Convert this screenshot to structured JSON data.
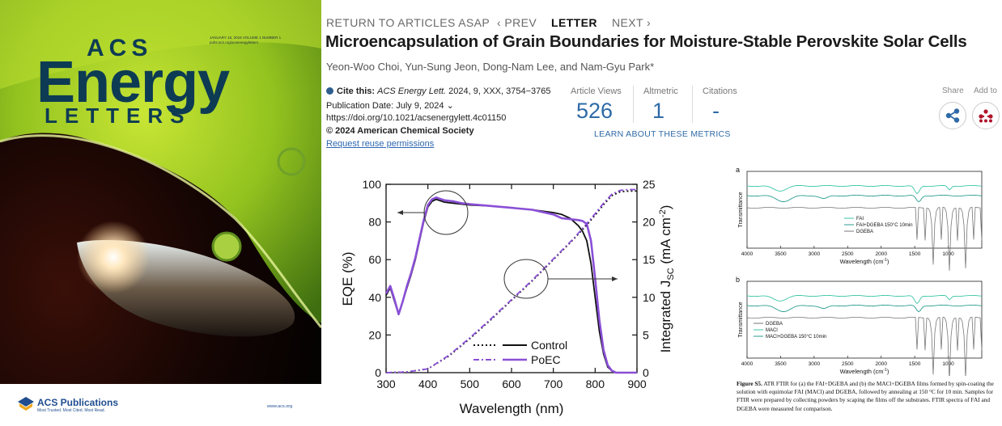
{
  "cover": {
    "meta_text": "JANUARY 15, 2016 VOLUME 1 NUMBER 1\npubs.acs.org/acsenergyletters",
    "brand_acs": "ACS",
    "brand_energy": "Energy",
    "brand_letters": "LETTERS",
    "publisher_name": "ACS Publications",
    "publisher_tagline": "Most Trusted. Most Cited. Most Read.",
    "publisher_url": "www.acs.org"
  },
  "nav": {
    "return_label": "RETURN TO ARTICLES ASAP",
    "prev_label": "‹ PREV",
    "article_type": "LETTER",
    "next_label": "NEXT ›"
  },
  "article": {
    "title": "Microencapsulation of Grain Boundaries for Moisture-Stable Perovskite Solar Cells",
    "authors": "Yeon-Woo Choi, Yun-Sung Jeon, Dong-Nam Lee, and Nam-Gyu Park*",
    "cite_label": "Cite this:",
    "cite_journal": "ACS Energy Lett.",
    "cite_rest": " 2024, 9, XXX, 3754−3765",
    "publication_date": "Publication Date: July 9, 2024 ⌄",
    "doi": "https://doi.org/10.1021/acsenergylett.4c01150",
    "copyright": "© 2024 American Chemical Society",
    "reuse": "Request reuse permissions"
  },
  "metrics": {
    "views_label": "Article Views",
    "views": "526",
    "altmetric_label": "Altmetric",
    "altmetric": "1",
    "citations_label": "Citations",
    "citations": "-",
    "learn_more": "LEARN ABOUT THESE METRICS"
  },
  "actions": {
    "share_label": "Share",
    "add_label": "Add to"
  },
  "colors": {
    "accent": "#2e6aa6",
    "poec": "#8a4fd6",
    "control": "#111111",
    "ftir_teal": "#3cc6a8"
  },
  "chart_data": [
    {
      "type": "line",
      "xlabel": "Wavelength (nm)",
      "ylabel": "EQE (%)",
      "y2label": "Integrated J",
      "y2label_sub": "SC",
      "y2label_unit": " (mA cm",
      "y2label_sup": "-2",
      "xlim": [
        300,
        900
      ],
      "ylim": [
        0,
        100
      ],
      "y2lim": [
        0,
        25
      ],
      "xticks": [
        300,
        400,
        500,
        600,
        700,
        800,
        900
      ],
      "yticks": [
        0,
        20,
        40,
        60,
        80,
        100
      ],
      "y2ticks": [
        0,
        5,
        10,
        15,
        20,
        25
      ],
      "legend_position": "bottom-center",
      "series": [
        {
          "name": "Control",
          "axis": "left",
          "style": "solid",
          "color": "#111111",
          "x": [
            300,
            310,
            320,
            330,
            340,
            350,
            360,
            370,
            380,
            390,
            400,
            410,
            420,
            440,
            460,
            480,
            500,
            550,
            600,
            650,
            700,
            720,
            740,
            760,
            770,
            780,
            790,
            800,
            810,
            820,
            830,
            840,
            850,
            860,
            880,
            900
          ],
          "y": [
            41,
            45,
            38,
            31,
            38,
            45,
            52,
            60,
            70,
            80,
            88,
            91,
            92,
            90.5,
            90,
            89.5,
            89,
            88.5,
            87.5,
            86.5,
            85,
            84,
            82,
            78,
            75,
            70,
            58,
            40,
            22,
            10,
            3,
            1,
            0,
            0,
            0,
            0
          ]
        },
        {
          "name": "PoEC",
          "axis": "left",
          "style": "solid",
          "color": "#8a4fd6",
          "x": [
            300,
            310,
            320,
            330,
            340,
            350,
            360,
            370,
            380,
            390,
            400,
            410,
            420,
            440,
            460,
            480,
            500,
            550,
            600,
            650,
            700,
            720,
            740,
            760,
            770,
            780,
            790,
            800,
            810,
            820,
            830,
            840,
            850,
            860,
            880,
            900
          ],
          "y": [
            42,
            46,
            39,
            31,
            38,
            46,
            53,
            61,
            71,
            81,
            89,
            92,
            93,
            91.5,
            91,
            90,
            89.5,
            88.5,
            87.5,
            86.5,
            84,
            82,
            81.5,
            81,
            80.5,
            79,
            70,
            50,
            28,
            12,
            4,
            1,
            0,
            0,
            0,
            0
          ]
        },
        {
          "name": "Control",
          "axis": "right",
          "style": "dotted",
          "color": "#111111",
          "x": [
            300,
            350,
            400,
            450,
            500,
            550,
            600,
            650,
            700,
            750,
            780,
            800,
            820,
            840,
            860,
            880,
            900
          ],
          "y": [
            0,
            0.1,
            0.5,
            2.2,
            4.5,
            7.0,
            9.6,
            12.2,
            15.0,
            17.8,
            19.6,
            20.9,
            22.3,
            23.5,
            24.0,
            24.1,
            24.1
          ]
        },
        {
          "name": "PoEC",
          "axis": "right",
          "style": "dashdot",
          "color": "#8a4fd6",
          "x": [
            300,
            350,
            400,
            450,
            500,
            550,
            600,
            650,
            700,
            750,
            780,
            800,
            820,
            840,
            860,
            880,
            900
          ],
          "y": [
            0,
            0.1,
            0.5,
            2.3,
            4.6,
            7.1,
            9.7,
            12.3,
            15.1,
            17.9,
            19.8,
            21.1,
            22.5,
            23.7,
            24.2,
            24.3,
            24.3
          ]
        }
      ]
    },
    {
      "type": "line",
      "panels": [
        {
          "label": "a",
          "xlabel": "Wavelength (cm",
          "xlabel_sup": "-1",
          "xlabel_tail": ")",
          "ylabel": "Transmittance",
          "xlim": [
            4000,
            500
          ],
          "xticks": [
            4000,
            3500,
            3000,
            2500,
            2000,
            1500,
            1000
          ],
          "legend": [
            "FAI",
            "FAI+DGEBA 150°C 10min",
            "DGEBA"
          ]
        },
        {
          "label": "b",
          "xlabel": "Wavelength (cm",
          "xlabel_sup": "-1",
          "xlabel_tail": ")",
          "ylabel": "Transmittance",
          "xlim": [
            4000,
            500
          ],
          "xticks": [
            4000,
            3500,
            3000,
            2500,
            2000,
            1500,
            1000
          ],
          "legend": [
            "DGEBA",
            "MACl",
            "MACl+DGEBA 150°C 10min"
          ]
        }
      ]
    }
  ],
  "caption": {
    "label": "Figure S5.",
    "text": " ATR FTIR for (a) the FAI+DGEBA and (b) the MACl+DGEBA films formed by spin-coating the solution with equimolar FAI (MACl) and DGEBA, followed by annealing at 150 °C for 10 min. Samples for FTIR were prepared by collecting powders by scaping the films off the substrates. FTIR spectra of FAI and DGEBA were measured for comparison."
  }
}
